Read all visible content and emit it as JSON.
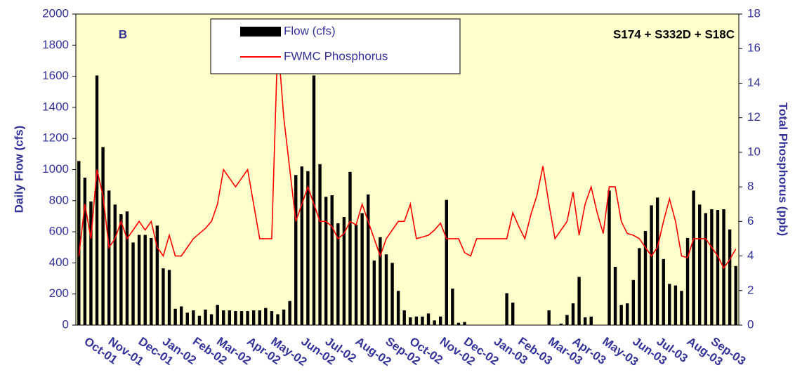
{
  "chart_data": {
    "type": "bar-line",
    "panel_label": "B",
    "title": "S174 + S332D + S18C",
    "ylabel": "Daily Flow (cfs)",
    "y2label": "Total Phosphorus (ppb)",
    "legend": "top-center",
    "background": "#ffffcc",
    "categories": [
      null,
      null,
      null,
      null,
      null,
      "Oct-01",
      null,
      null,
      null,
      "Nov-01",
      null,
      null,
      null,
      null,
      "Dec-01",
      null,
      null,
      null,
      "Jan-02",
      null,
      null,
      null,
      null,
      "Feb-02",
      null,
      null,
      null,
      "Mar-02",
      null,
      null,
      null,
      null,
      "Apr-02",
      null,
      null,
      null,
      "May-02",
      null,
      null,
      null,
      null,
      "Jun-02",
      null,
      null,
      null,
      "Jul-02",
      null,
      null,
      null,
      null,
      "Aug-02",
      null,
      null,
      null,
      null,
      "Sep-02",
      null,
      null,
      null,
      "Oct-02",
      null,
      null,
      null,
      null,
      "Nov-02",
      null,
      null,
      null,
      "Dec-02",
      null,
      null,
      null,
      null,
      "Jan-03",
      null,
      null,
      null,
      "Feb-03",
      null,
      null,
      null,
      null,
      "Mar-03",
      null,
      null,
      null,
      "Apr-03",
      null,
      null,
      null,
      null,
      "May-03",
      null,
      null,
      null,
      null,
      "Jun-03",
      null,
      null,
      null,
      "Jul-03",
      null,
      null,
      null,
      null,
      "Aug-03",
      null,
      null,
      null,
      "Sep-03"
    ],
    "series": [
      {
        "name": "Flow (cfs)",
        "color": "#000000",
        "kind": "bar",
        "axis": "y",
        "values": [
          1055,
          948,
          795,
          1605,
          1145,
          865,
          775,
          713,
          731,
          531,
          580,
          580,
          560,
          640,
          365,
          355,
          105,
          120,
          80,
          95,
          60,
          100,
          70,
          130,
          95,
          95,
          90,
          90,
          90,
          95,
          95,
          110,
          90,
          70,
          100,
          155,
          965,
          1020,
          990,
          1605,
          1035,
          825,
          835,
          655,
          695,
          985,
          645,
          720,
          840,
          415,
          565,
          455,
          400,
          220,
          95,
          50,
          55,
          55,
          75,
          30,
          55,
          805,
          235,
          15,
          20,
          0,
          0,
          0,
          0,
          0,
          0,
          205,
          145,
          0,
          0,
          0,
          0,
          0,
          95,
          0,
          10,
          65,
          140,
          310,
          50,
          55,
          0,
          0,
          865,
          375,
          130,
          140,
          290,
          495,
          605,
          770,
          820,
          425,
          265,
          255,
          220,
          560,
          865,
          775,
          720,
          745,
          740,
          745,
          615,
          380
        ]
      },
      {
        "name": "FWMC Phosphorus",
        "color": "#ff0000",
        "kind": "line",
        "axis": "y2",
        "values": [
          4,
          7,
          5,
          9,
          7.5,
          4.5,
          5,
          6,
          5,
          5.5,
          6,
          5.5,
          6,
          4.5,
          4,
          5.2,
          4,
          4,
          4.5,
          5,
          5.3,
          5.6,
          6,
          7,
          9,
          8.5,
          8,
          8.5,
          9,
          7,
          5,
          5,
          5,
          16.5,
          12,
          9,
          6,
          7,
          8,
          7,
          6,
          6,
          5.7,
          5,
          5.3,
          6,
          5.8,
          7,
          6,
          5,
          4,
          5,
          5.5,
          6,
          6,
          7,
          5,
          5.1,
          5.2,
          5.5,
          5.9,
          5,
          5,
          5,
          4.2,
          4,
          5,
          5,
          5,
          5,
          5,
          5,
          6.5,
          5.7,
          5,
          6.4,
          7.5,
          9.2,
          7,
          5,
          5.5,
          6,
          7.7,
          5.2,
          7,
          8,
          6.5,
          5.3,
          8,
          8,
          6,
          5.3,
          5.2,
          5,
          4.5,
          4,
          4.5,
          6,
          7.3,
          6,
          4,
          3.9,
          5,
          5,
          5,
          4.5,
          4,
          3.3,
          3.8,
          4.4
        ]
      }
    ],
    "ylim": [
      0,
      2000
    ],
    "yticks": [
      0,
      200,
      400,
      600,
      800,
      1000,
      1200,
      1400,
      1600,
      1800,
      2000
    ],
    "y2lim": [
      0,
      18
    ],
    "y2ticks": [
      0,
      2,
      4,
      6,
      8,
      10,
      12,
      14,
      16,
      18
    ]
  }
}
